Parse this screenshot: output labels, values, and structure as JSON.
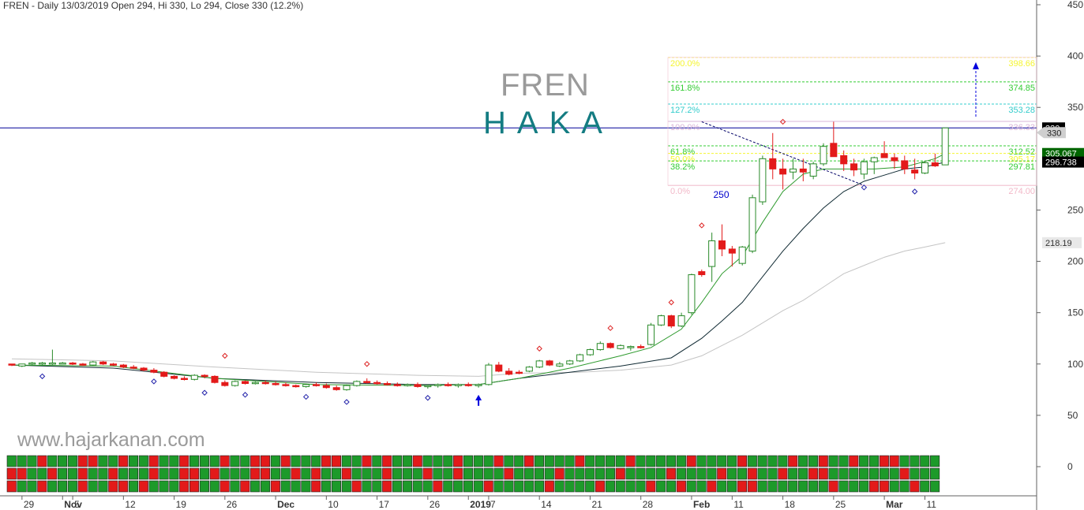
{
  "header": {
    "text": "FREN - Daily 13/03/2019 Open 294, Hi 330, Lo 294, Close 330 (12.2%)"
  },
  "logo": {
    "line1": "FREN",
    "line2": "HAKA"
  },
  "watermark": {
    "text": "www.hajarkanan.com"
  },
  "chart_data": {
    "type": "candlestick",
    "ylim": [
      0,
      450
    ],
    "y_ticks": [
      {
        "v": 450,
        "t": "450"
      },
      {
        "v": 400,
        "t": "400"
      },
      {
        "v": 350,
        "t": "350"
      },
      {
        "v": 250,
        "t": "250"
      },
      {
        "v": 200,
        "t": "200"
      },
      {
        "v": 150,
        "t": "150"
      },
      {
        "v": 100,
        "t": "100"
      },
      {
        "v": 50,
        "t": "50"
      },
      {
        "v": 0,
        "t": "0"
      }
    ],
    "x_ticks": [
      {
        "i": 1,
        "t": "29"
      },
      {
        "i": 5,
        "t": "Nov"
      },
      {
        "i": 6,
        "t": "5"
      },
      {
        "i": 11,
        "t": "12"
      },
      {
        "i": 16,
        "t": "19"
      },
      {
        "i": 21,
        "t": "26"
      },
      {
        "i": 26,
        "t": "Dec"
      },
      {
        "i": 31,
        "t": "10"
      },
      {
        "i": 36,
        "t": "17"
      },
      {
        "i": 41,
        "t": "26"
      },
      {
        "i": 45,
        "t": "2019"
      },
      {
        "i": 47,
        "t": "7"
      },
      {
        "i": 52,
        "t": "14"
      },
      {
        "i": 57,
        "t": "21"
      },
      {
        "i": 62,
        "t": "28"
      },
      {
        "i": 67,
        "t": "Feb"
      },
      {
        "i": 71,
        "t": "11"
      },
      {
        "i": 76,
        "t": "18"
      },
      {
        "i": 81,
        "t": "25"
      },
      {
        "i": 86,
        "t": "Mar"
      },
      {
        "i": 90,
        "t": "11"
      }
    ],
    "candles": [
      [
        100,
        100,
        98,
        99
      ],
      [
        98,
        100,
        97,
        100
      ],
      [
        100,
        102,
        99,
        101
      ],
      [
        101,
        102,
        99,
        101
      ],
      [
        100,
        114,
        99,
        101
      ],
      [
        101,
        102,
        100,
        101
      ],
      [
        101,
        102,
        99,
        100
      ],
      [
        100,
        101,
        98,
        99
      ],
      [
        99,
        103,
        98,
        102
      ],
      [
        102,
        103,
        99,
        100
      ],
      [
        100,
        101,
        98,
        99
      ],
      [
        99,
        100,
        96,
        97
      ],
      [
        97,
        99,
        95,
        96
      ],
      [
        96,
        97,
        93,
        94
      ],
      [
        94,
        96,
        91,
        92
      ],
      [
        92,
        93,
        87,
        88
      ],
      [
        88,
        89,
        85,
        86
      ],
      [
        86,
        88,
        84,
        85
      ],
      [
        85,
        90,
        84,
        89
      ],
      [
        89,
        90,
        86,
        88
      ],
      [
        88,
        89,
        81,
        82
      ],
      [
        82,
        84,
        78,
        79
      ],
      [
        79,
        84,
        78,
        83
      ],
      [
        83,
        84,
        80,
        81
      ],
      [
        81,
        83,
        80,
        82
      ],
      [
        82,
        84,
        80,
        81
      ],
      [
        81,
        83,
        79,
        80
      ],
      [
        80,
        82,
        78,
        79
      ],
      [
        79,
        80,
        77,
        78
      ],
      [
        78,
        81,
        77,
        80
      ],
      [
        80,
        82,
        78,
        79
      ],
      [
        79,
        81,
        76,
        77
      ],
      [
        77,
        79,
        74,
        75
      ],
      [
        75,
        80,
        74,
        79
      ],
      [
        79,
        84,
        78,
        83
      ],
      [
        83,
        86,
        81,
        82
      ],
      [
        82,
        84,
        80,
        81
      ],
      [
        81,
        83,
        79,
        80
      ],
      [
        80,
        82,
        78,
        79
      ],
      [
        79,
        81,
        78,
        80
      ],
      [
        80,
        82,
        77,
        78
      ],
      [
        78,
        80,
        76,
        79
      ],
      [
        79,
        81,
        77,
        80
      ],
      [
        80,
        82,
        78,
        79
      ],
      [
        79,
        81,
        77,
        80
      ],
      [
        80,
        82,
        78,
        79
      ],
      [
        79,
        81,
        77,
        80
      ],
      [
        80,
        101,
        79,
        99
      ],
      [
        99,
        102,
        92,
        93
      ],
      [
        93,
        96,
        89,
        90
      ],
      [
        92,
        94,
        90,
        91
      ],
      [
        93,
        98,
        92,
        97
      ],
      [
        97,
        104,
        96,
        103
      ],
      [
        103,
        104,
        98,
        99
      ],
      [
        98,
        102,
        97,
        100
      ],
      [
        100,
        104,
        99,
        103
      ],
      [
        103,
        110,
        102,
        109
      ],
      [
        109,
        115,
        108,
        114
      ],
      [
        114,
        122,
        113,
        120
      ],
      [
        120,
        121,
        115,
        116
      ],
      [
        115,
        119,
        114,
        118
      ],
      [
        117,
        118,
        113,
        117
      ],
      [
        117,
        119,
        115,
        116
      ],
      [
        119,
        140,
        118,
        138
      ],
      [
        138,
        148,
        137,
        147
      ],
      [
        147,
        148,
        135,
        137
      ],
      [
        137,
        150,
        136,
        147
      ],
      [
        150,
        188,
        148,
        187
      ],
      [
        190,
        192,
        185,
        187
      ],
      [
        195,
        228,
        180,
        220
      ],
      [
        220,
        236,
        205,
        212
      ],
      [
        212,
        215,
        195,
        208
      ],
      [
        198,
        215,
        196,
        214
      ],
      [
        210,
        265,
        208,
        262
      ],
      [
        258,
        303,
        255,
        300
      ],
      [
        300,
        325,
        280,
        290
      ],
      [
        290,
        300,
        270,
        285
      ],
      [
        287,
        300,
        280,
        290
      ],
      [
        290,
        300,
        278,
        287
      ],
      [
        283,
        297,
        280,
        295
      ],
      [
        295,
        315,
        293,
        312
      ],
      [
        315,
        336,
        305,
        302
      ],
      [
        303,
        308,
        288,
        295
      ],
      [
        295,
        300,
        283,
        289
      ],
      [
        285,
        300,
        280,
        297
      ],
      [
        297,
        302,
        285,
        301
      ],
      [
        305,
        317,
        302,
        301
      ],
      [
        301,
        305,
        290,
        298
      ],
      [
        298,
        303,
        285,
        290
      ],
      [
        289,
        300,
        280,
        286
      ],
      [
        286,
        298,
        285,
        296
      ],
      [
        296,
        305,
        292,
        293
      ],
      [
        294,
        330,
        294,
        330
      ]
    ],
    "ma_fast": [
      [
        0,
        99
      ],
      [
        10,
        98
      ],
      [
        20,
        86
      ],
      [
        30,
        80
      ],
      [
        40,
        79
      ],
      [
        46,
        80
      ],
      [
        50,
        86
      ],
      [
        55,
        96
      ],
      [
        60,
        108
      ],
      [
        63,
        116
      ],
      [
        66,
        134
      ],
      [
        68,
        160
      ],
      [
        70,
        188
      ],
      [
        72,
        205
      ],
      [
        74,
        238
      ],
      [
        76,
        268
      ],
      [
        78,
        285
      ],
      [
        80,
        290
      ],
      [
        85,
        290
      ],
      [
        88,
        292
      ],
      [
        91,
        300
      ],
      [
        92,
        305
      ]
    ],
    "ma_slow": [
      [
        0,
        99
      ],
      [
        10,
        96
      ],
      [
        20,
        86
      ],
      [
        30,
        82
      ],
      [
        40,
        80
      ],
      [
        46,
        80
      ],
      [
        50,
        86
      ],
      [
        55,
        92
      ],
      [
        60,
        98
      ],
      [
        65,
        106
      ],
      [
        68,
        125
      ],
      [
        70,
        142
      ],
      [
        72,
        160
      ],
      [
        74,
        185
      ],
      [
        76,
        210
      ],
      [
        78,
        232
      ],
      [
        80,
        252
      ],
      [
        82,
        268
      ],
      [
        84,
        278
      ],
      [
        86,
        284
      ],
      [
        88,
        290
      ],
      [
        90,
        292
      ],
      [
        92,
        296.738
      ]
    ],
    "ma_long": [
      [
        0,
        105
      ],
      [
        10,
        103
      ],
      [
        20,
        97
      ],
      [
        30,
        92
      ],
      [
        40,
        89
      ],
      [
        46,
        88
      ],
      [
        50,
        91
      ],
      [
        56,
        92
      ],
      [
        60,
        94
      ],
      [
        65,
        99
      ],
      [
        68,
        108
      ],
      [
        70,
        118
      ],
      [
        72,
        128
      ],
      [
        74,
        140
      ],
      [
        76,
        152
      ],
      [
        78,
        162
      ],
      [
        80,
        175
      ],
      [
        82,
        188
      ],
      [
        84,
        196
      ],
      [
        86,
        204
      ],
      [
        88,
        210
      ],
      [
        90,
        214
      ],
      [
        92,
        218.19
      ]
    ],
    "fib_levels": [
      {
        "pct": "200.0%",
        "value": 398.66,
        "label": "398.66",
        "color": "#f5f530"
      },
      {
        "pct": "161.8%",
        "value": 374.85,
        "label": "374.85",
        "color": "#33cc33"
      },
      {
        "pct": "127.2%",
        "value": 353.28,
        "label": "353.28",
        "color": "#33cccc"
      },
      {
        "pct": "100.0%",
        "value": 336.33,
        "label": "336.33",
        "color": "#d8b4d8"
      },
      {
        "pct": "61.8%",
        "value": 312.52,
        "label": "312.52",
        "color": "#33cc33"
      },
      {
        "pct": "50.0%",
        "value": 305.17,
        "label": "305.17",
        "color": "#f5f530"
      },
      {
        "pct": "38.2%",
        "value": 297.81,
        "label": "297.81",
        "color": "#33cc33"
      },
      {
        "pct": "0.0%",
        "value": 274.0,
        "label": "274.00",
        "color": "#f2b8c8"
      }
    ],
    "resistance_line": {
      "value": 330,
      "color": "#000099"
    },
    "annotations": [
      {
        "text": "250",
        "i": 70,
        "v": 265,
        "color": "#0000cc"
      }
    ],
    "diamonds_above": [
      [
        21,
        108
      ],
      [
        35,
        100
      ],
      [
        52,
        115
      ],
      [
        59,
        135
      ],
      [
        65,
        160
      ],
      [
        68,
        235
      ],
      [
        76,
        336
      ]
    ],
    "diamonds_below": [
      [
        3,
        88
      ],
      [
        14,
        83
      ],
      [
        19,
        72
      ],
      [
        23,
        70
      ],
      [
        29,
        68
      ],
      [
        33,
        63
      ],
      [
        41,
        67
      ],
      [
        84,
        272
      ],
      [
        89,
        268
      ]
    ],
    "price_tags": [
      {
        "text": "330",
        "v": 330,
        "bg": "#000000",
        "fg": "#ffffff"
      },
      {
        "text": "305.067",
        "v": 305.067,
        "bg": "#006600",
        "fg": "#ffffff"
      },
      {
        "text": "296.738",
        "v": 296.738,
        "bg": "#000000",
        "fg": "#ffffff"
      },
      {
        "text": "218.19",
        "v": 218.19,
        "bg": "#e8e8e8",
        "fg": "#333333"
      }
    ],
    "indicator_pattern": "GGGRGGGRRGGRGGRGGRGGGRGGRRGRGGGRRGGRGRGGRGGGRGGGRGGRGGGGRGGGGRGGGGGRGGGGRGGGGRGGRGGRGGRRGGGG"
  },
  "colors": {
    "up": "#2a8a2a",
    "down": "#e31a1a",
    "ma_fast": "#2e9a2e",
    "ma_slow": "#102a33",
    "ma_long": "#c4c4c4",
    "axis": "#606060"
  }
}
